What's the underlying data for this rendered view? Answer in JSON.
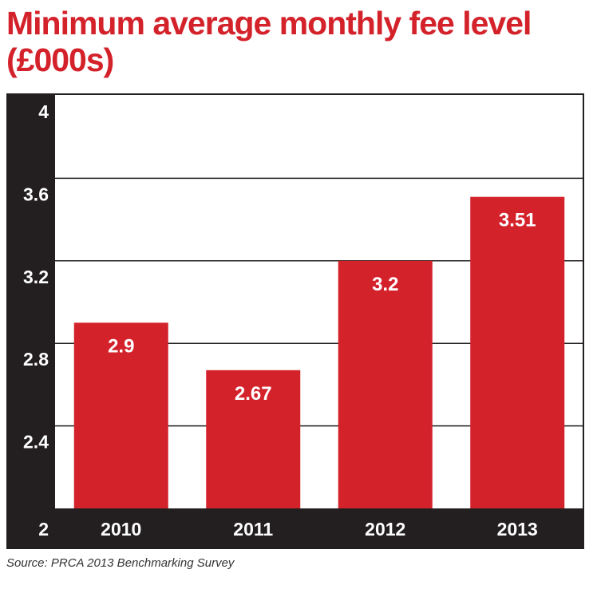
{
  "title_line1": "Minimum average monthly fee level",
  "title_line2": "(£000s)",
  "source": "Source: PRCA 2013 Benchmarking Survey",
  "colors": {
    "bar": "#d4222b",
    "title": "#d4222b",
    "axis_band": "#231f20",
    "grid": "#231f20",
    "label_on_bar": "#ffffff",
    "axis_text": "#ffffff"
  },
  "chart_data": {
    "type": "bar",
    "title": "Minimum average monthly fee level (£000s)",
    "categories": [
      "2010",
      "2011",
      "2012",
      "2013"
    ],
    "values": [
      2.9,
      2.67,
      3.2,
      3.51
    ],
    "value_labels": [
      "2.9",
      "2.67",
      "3.2",
      "3.51"
    ],
    "yticks": [
      "2",
      "2.4",
      "2.8",
      "3.2",
      "3.6",
      "4"
    ],
    "ylim": [
      2,
      4
    ],
    "xlabel": "",
    "ylabel": "",
    "grid": true,
    "legend": "none"
  }
}
